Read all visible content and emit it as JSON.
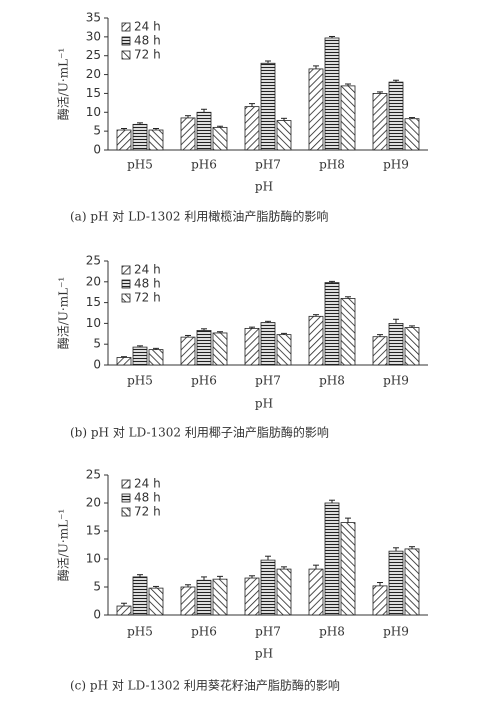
{
  "chart_data": [
    {
      "type": "bar",
      "title": "(a) pH 对 LD-1302 利用橄榄油产脂肪酶的影响",
      "x_label": "pH",
      "y_label": "酶活/U·mL⁻¹",
      "categories": [
        "pH5",
        "pH6",
        "pH7",
        "pH8",
        "pH9"
      ],
      "series": [
        {
          "name": "24 h",
          "color": "#222",
          "hatch": "diag-down",
          "values": [
            5.3,
            8.5,
            11.5,
            21.5,
            15
          ],
          "errors": [
            0.4,
            0.6,
            0.8,
            0.8,
            0.4
          ]
        },
        {
          "name": "48 h",
          "color": "#222",
          "hatch": "horizontal",
          "values": [
            6.8,
            10,
            23,
            29.7,
            18
          ],
          "errors": [
            0.4,
            0.8,
            0.6,
            0.4,
            0.5
          ]
        },
        {
          "name": "72 h",
          "color": "#222",
          "hatch": "diag-up",
          "values": [
            5.3,
            6,
            7.8,
            17,
            8.3
          ],
          "errors": [
            0.4,
            0.3,
            0.6,
            0.5,
            0.3
          ]
        }
      ],
      "ylim": [
        0,
        35
      ],
      "yticks": [
        0,
        5,
        10,
        15,
        20,
        25,
        30,
        35
      ],
      "legend": "upper left"
    },
    {
      "type": "bar",
      "title": "(b) pH 对 LD-1302 利用椰子油产脂肪酶的影响",
      "x_label": "pH",
      "y_label": "酶活/U·mL⁻¹",
      "categories": [
        "pH5",
        "pH6",
        "pH7",
        "pH8",
        "pH9"
      ],
      "series": [
        {
          "name": "24 h",
          "color": "#222",
          "hatch": "diag-down",
          "values": [
            1.8,
            6.7,
            8.8,
            11.7,
            6.8
          ],
          "errors": [
            0.2,
            0.4,
            0.3,
            0.4,
            0.5
          ]
        },
        {
          "name": "48 h",
          "color": "#222",
          "hatch": "horizontal",
          "values": [
            4.3,
            8.3,
            10.2,
            19.8,
            10
          ],
          "errors": [
            0.3,
            0.4,
            0.3,
            0.3,
            1
          ]
        },
        {
          "name": "72 h",
          "color": "#222",
          "hatch": "diag-up",
          "values": [
            3.7,
            7.7,
            7.3,
            16,
            9
          ],
          "errors": [
            0.3,
            0.3,
            0.3,
            0.4,
            0.4
          ]
        }
      ],
      "ylim": [
        0,
        25
      ],
      "yticks": [
        0,
        5,
        10,
        15,
        20,
        25
      ],
      "legend": "upper left"
    },
    {
      "type": "bar",
      "title": "(c) pH 对 LD-1302 利用葵花籽油产脂肪酶的影响",
      "x_label": "pH",
      "y_label": "酶活/U·mL⁻¹",
      "categories": [
        "pH5",
        "pH6",
        "pH7",
        "pH8",
        "pH9"
      ],
      "series": [
        {
          "name": "24 h",
          "color": "#222",
          "hatch": "diag-down",
          "values": [
            1.6,
            5,
            6.6,
            8.2,
            5.2
          ],
          "errors": [
            0.5,
            0.4,
            0.4,
            0.7,
            0.6
          ]
        },
        {
          "name": "48 h",
          "color": "#222",
          "hatch": "horizontal",
          "values": [
            6.8,
            6.2,
            9.8,
            20,
            11.4
          ],
          "errors": [
            0.4,
            0.6,
            0.7,
            0.5,
            0.6
          ]
        },
        {
          "name": "72 h",
          "color": "#222",
          "hatch": "diag-up",
          "values": [
            4.8,
            6.4,
            8.2,
            16.5,
            11.8
          ],
          "errors": [
            0.3,
            0.5,
            0.4,
            0.8,
            0.4
          ]
        }
      ],
      "ylim": [
        0,
        25
      ],
      "yticks": [
        0,
        5,
        10,
        15,
        20,
        25
      ],
      "legend": "upper left"
    }
  ]
}
